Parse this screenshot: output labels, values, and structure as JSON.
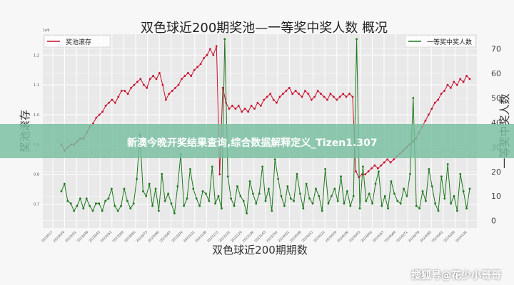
{
  "chart_data": {
    "type": "line",
    "title": "双色球近200期奖池—一等奖中奖人数  概况",
    "xlabel": "双色球近200期期数",
    "ylabel_left": "奖池滚存",
    "ylabel_right": "一等奖中奖人数",
    "y_left_exponent": "1e9",
    "y_left_ticks": [
      "1.2",
      "1.1",
      "1.0",
      "0.9",
      "0.8",
      "0.7"
    ],
    "y_left_range": [
      0.62,
      1.27
    ],
    "y_right_ticks": [
      0,
      10,
      20,
      30,
      40,
      50,
      60,
      70
    ],
    "y_right_range": [
      -3,
      76
    ],
    "grid": true,
    "legend_left": "top-left",
    "legend_right": "top-right",
    "series": [
      {
        "name": "奖池滚存",
        "color": "#c8102e",
        "values": [
          0.9,
          0.88,
          0.89,
          0.9,
          0.9,
          0.91,
          0.92,
          0.92,
          0.94,
          0.96,
          0.97,
          0.99,
          1.0,
          1.01,
          1.03,
          1.04,
          1.05,
          1.04,
          1.06,
          1.08,
          1.08,
          1.07,
          1.09,
          1.1,
          1.11,
          1.12,
          1.1,
          1.09,
          1.12,
          1.13,
          1.12,
          1.14,
          1.1,
          1.05,
          1.07,
          1.08,
          1.09,
          1.1,
          1.12,
          1.13,
          1.14,
          1.13,
          1.15,
          1.16,
          1.17,
          1.19,
          1.2,
          1.22,
          1.2,
          1.23,
          0.8,
          1.09,
          1.04,
          1.02,
          1.03,
          1.02,
          1.03,
          1.01,
          1.02,
          1.01,
          1.03,
          1.02,
          1.04,
          1.03,
          1.05,
          1.06,
          1.07,
          1.05,
          1.04,
          1.06,
          1.07,
          1.08,
          1.09,
          1.07,
          1.08,
          1.07,
          1.06,
          1.08,
          1.07,
          1.05,
          1.06,
          1.08,
          1.07,
          1.06,
          1.05,
          1.07,
          1.06,
          1.05,
          1.06,
          1.07,
          1.06,
          1.07,
          1.06,
          0.81,
          0.79,
          0.8,
          0.8,
          0.81,
          0.82,
          0.83,
          0.82,
          0.83,
          0.84,
          0.85,
          0.84,
          0.85,
          0.86,
          0.87,
          0.88,
          0.89,
          0.9,
          0.91,
          0.92,
          0.94,
          0.96,
          0.98,
          1.0,
          1.02,
          1.04,
          1.05,
          1.07,
          1.08,
          1.1,
          1.09,
          1.11,
          1.1,
          1.12,
          1.11,
          1.13,
          1.12
        ]
      },
      {
        "name": "一等奖中奖人数",
        "color": "#1f7a1f",
        "values": [
          12,
          15,
          8,
          7,
          4,
          6,
          9,
          5,
          9,
          6,
          4,
          7,
          7,
          4,
          8,
          9,
          13,
          6,
          4,
          6,
          13,
          8,
          5,
          7,
          17,
          35,
          12,
          10,
          15,
          6,
          13,
          4,
          19,
          8,
          11,
          7,
          3,
          14,
          27,
          6,
          9,
          21,
          13,
          9,
          6,
          12,
          11,
          8,
          22,
          7,
          10,
          5,
          74,
          18,
          9,
          6,
          14,
          10,
          8,
          3,
          16,
          11,
          7,
          11,
          22,
          8,
          13,
          4,
          25,
          17,
          10,
          6,
          14,
          9,
          8,
          19,
          11,
          5,
          15,
          9,
          7,
          13,
          10,
          4,
          21,
          7,
          10,
          13,
          8,
          18,
          7,
          12,
          6,
          10,
          74,
          5,
          22,
          8,
          11,
          7,
          15,
          20,
          6,
          10,
          5,
          16,
          11,
          8,
          7,
          13,
          10,
          19,
          50,
          6,
          5,
          12,
          8,
          21,
          14,
          7,
          4,
          18,
          9,
          23,
          7,
          10,
          4,
          19,
          12,
          5,
          13
        ]
      }
    ],
    "x_tick_labels": [
      "2023017",
      "2023024",
      "2023031",
      "2023038",
      "2023045",
      "2023052",
      "2023059",
      "2023066",
      "2023073",
      "2023080",
      "2023087",
      "2023094",
      "2023101",
      "2023108",
      "2023115",
      "2023122",
      "2023129",
      "2023136",
      "2023143",
      "2023150",
      "2024001",
      "2024008",
      "2024015",
      "2024022",
      "2024029",
      "2024036",
      "2024043",
      "2024050",
      "2024057",
      "2024064",
      "2024071",
      "2024078",
      "2024085",
      "2024092",
      "2024099",
      "2024106"
    ]
  },
  "banner": {
    "text": "新澳今晚开奖结果查询,综合数据解释定义_Tizen1.307"
  },
  "watermark": {
    "text": "搜狐号@花少小哥哥"
  }
}
